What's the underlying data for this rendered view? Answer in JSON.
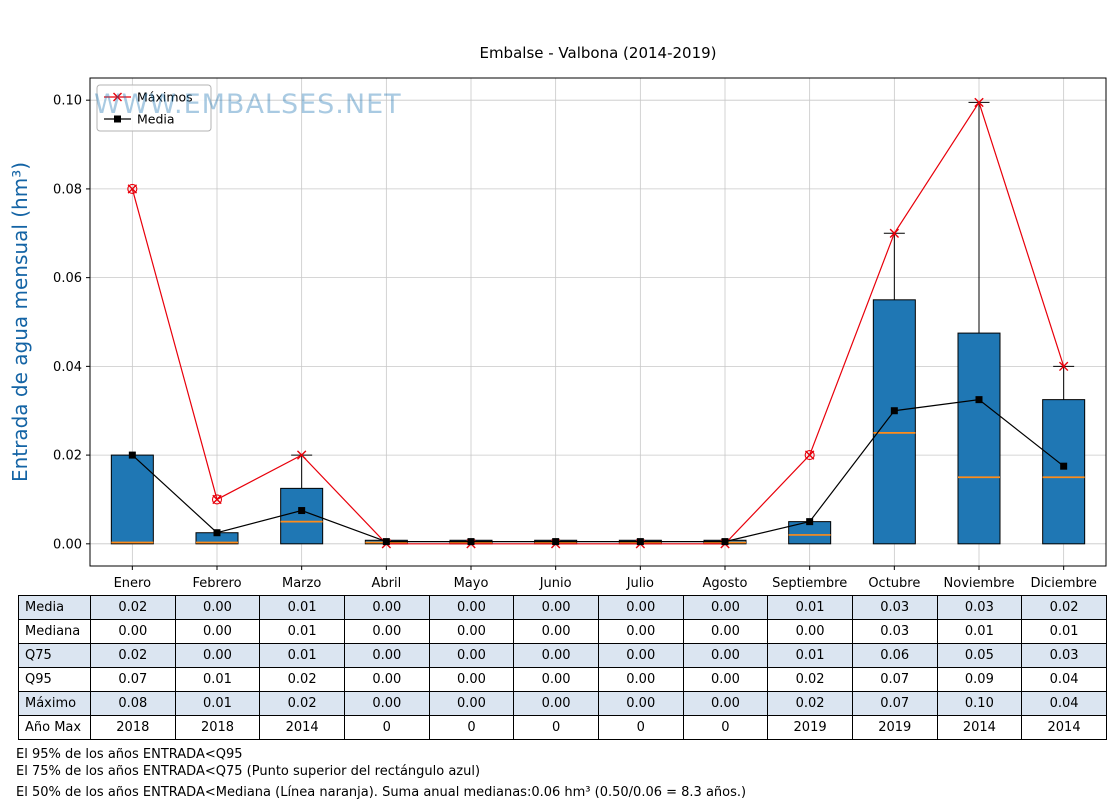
{
  "title": "Embalse - Valbona (2014-2019)",
  "watermark": "WWW.EMBALSES.NET",
  "chart_data": {
    "type": "box+line",
    "title": "Embalse - Valbona (2014-2019)",
    "ylabel": "Entrada de agua mensual (hm³)",
    "xlabel": "",
    "categories": [
      "Enero",
      "Febrero",
      "Marzo",
      "Abril",
      "Mayo",
      "Junio",
      "Julio",
      "Agosto",
      "Septiembre",
      "Octubre",
      "Noviembre",
      "Diciembre"
    ],
    "ylim": [
      -0.005,
      0.105
    ],
    "yticks": [
      0.0,
      0.02,
      0.04,
      0.06,
      0.08,
      0.1
    ],
    "grid": true,
    "legend_position": "upper left",
    "series": [
      {
        "name": "Máximos",
        "marker": "x",
        "color": "#e8000b",
        "values": [
          0.08,
          0.01,
          0.02,
          0.0,
          0.0,
          0.0,
          0.0,
          0.0,
          0.02,
          0.07,
          0.0995,
          0.04
        ]
      },
      {
        "name": "Media",
        "marker": "square",
        "color": "#000000",
        "values": [
          0.02,
          0.0025,
          0.0075,
          0.0005,
          0.0005,
          0.0005,
          0.0005,
          0.0005,
          0.005,
          0.03,
          0.0325,
          0.0175
        ]
      }
    ],
    "box": {
      "q25": [
        0,
        0,
        0,
        0,
        0,
        0,
        0,
        0,
        0,
        0,
        0,
        0
      ],
      "median": [
        0.0003,
        0.0003,
        0.005,
        0.0003,
        0.0003,
        0.0003,
        0.0003,
        0.0003,
        0.002,
        0.025,
        0.015,
        0.015
      ],
      "q75": [
        0.02,
        0.0025,
        0.0125,
        0.0008,
        0.0008,
        0.0008,
        0.0008,
        0.0008,
        0.005,
        0.055,
        0.0475,
        0.0325
      ],
      "whisker_high": [
        0.02,
        0.0025,
        0.02,
        0.0008,
        0.0008,
        0.0008,
        0.0008,
        0.0008,
        0.005,
        0.07,
        0.0995,
        0.04
      ],
      "fliers": [
        {
          "month": 0,
          "value": 0.08
        },
        {
          "month": 1,
          "value": 0.01
        },
        {
          "month": 8,
          "value": 0.02
        }
      ]
    },
    "colors": {
      "box": "#1f77b4",
      "median": "#ff8c1a",
      "maximos": "#e8000b",
      "media": "#000000",
      "ylabel": "#1464a5",
      "watermark": "#1f77b4",
      "grid": "#c8c8c8"
    }
  },
  "table": {
    "row_labels": [
      "Media",
      "Mediana",
      "Q75",
      "Q95",
      "Máximo",
      "Año Max"
    ],
    "columns": [
      "Enero",
      "Febrero",
      "Marzo",
      "Abril",
      "Mayo",
      "Junio",
      "Julio",
      "Agosto",
      "Septiembre",
      "Octubre",
      "Noviembre",
      "Diciembre"
    ],
    "rows": [
      [
        "0.02",
        "0.00",
        "0.01",
        "0.00",
        "0.00",
        "0.00",
        "0.00",
        "0.00",
        "0.01",
        "0.03",
        "0.03",
        "0.02"
      ],
      [
        "0.00",
        "0.00",
        "0.01",
        "0.00",
        "0.00",
        "0.00",
        "0.00",
        "0.00",
        "0.00",
        "0.03",
        "0.01",
        "0.01"
      ],
      [
        "0.02",
        "0.00",
        "0.01",
        "0.00",
        "0.00",
        "0.00",
        "0.00",
        "0.00",
        "0.01",
        "0.06",
        "0.05",
        "0.03"
      ],
      [
        "0.07",
        "0.01",
        "0.02",
        "0.00",
        "0.00",
        "0.00",
        "0.00",
        "0.00",
        "0.02",
        "0.07",
        "0.09",
        "0.04"
      ],
      [
        "0.08",
        "0.01",
        "0.02",
        "0.00",
        "0.00",
        "0.00",
        "0.00",
        "0.00",
        "0.02",
        "0.07",
        "0.10",
        "0.04"
      ],
      [
        "2018",
        "2018",
        "2014",
        "0",
        "0",
        "0",
        "0",
        "0",
        "2019",
        "2019",
        "2014",
        "2014"
      ]
    ]
  },
  "footnotes": [
    "El 95% de los años ENTRADA<Q95",
    "El 75% de los años ENTRADA<Q75 (Punto superior del rectángulo azul)",
    "El 50% de los años ENTRADA<Mediana (Línea naranja). Suma anual medianas:0.06 hm³ (0.50/0.06 = 8.3 años.)"
  ]
}
